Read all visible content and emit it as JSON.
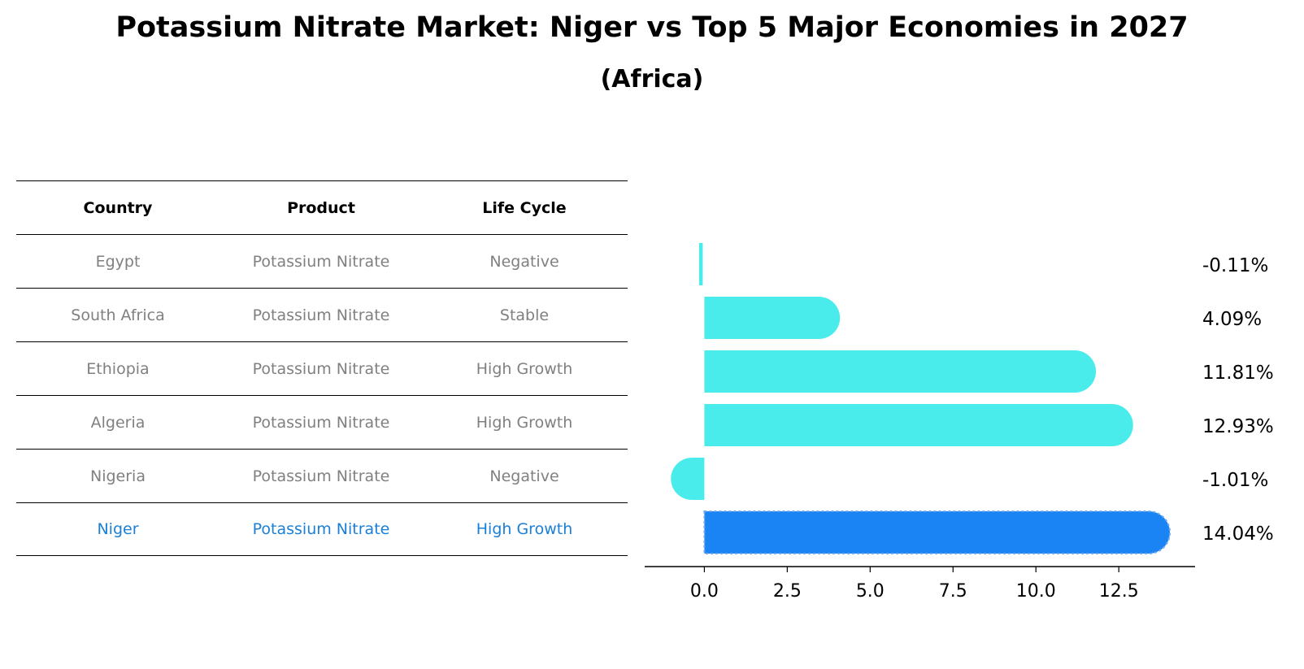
{
  "title": "Potassium Nitrate Market: Niger vs Top 5 Major Economies in 2027",
  "subtitle": "(Africa)",
  "table": {
    "headers": [
      "Country",
      "Product",
      "Life Cycle"
    ],
    "rows": [
      [
        "Egypt",
        "Potassium Nitrate",
        "Negative"
      ],
      [
        "South Africa",
        "Potassium Nitrate",
        "Stable"
      ],
      [
        "Ethiopia",
        "Potassium Nitrate",
        "High Growth"
      ],
      [
        "Algeria",
        "Potassium Nitrate",
        "High Growth"
      ],
      [
        "Nigeria",
        "Potassium Nitrate",
        "Negative"
      ],
      [
        "Niger",
        "Potassium Nitrate",
        "High Growth"
      ]
    ]
  },
  "colors": {
    "bar": "#4aeceb",
    "highlight": "#1a84f5",
    "highlight_text": "#1a7fd6",
    "muted_text": "#808080"
  },
  "chart_data": {
    "type": "bar",
    "orientation": "horizontal",
    "categories": [
      "Egypt",
      "South Africa",
      "Ethiopia",
      "Algeria",
      "Nigeria",
      "Niger"
    ],
    "values": [
      -0.11,
      4.09,
      11.81,
      12.93,
      -1.01,
      14.04
    ],
    "labels": [
      "-0.11%",
      "4.09%",
      "11.81%",
      "12.93%",
      "-1.01%",
      "14.04%"
    ],
    "highlight": "Niger",
    "xlim": [
      -1.8,
      14.8
    ],
    "xticks": [
      0.0,
      2.5,
      5.0,
      7.5,
      10.0,
      12.5
    ],
    "xtick_labels": [
      "0.0",
      "2.5",
      "5.0",
      "7.5",
      "10.0",
      "12.5"
    ],
    "xlabel": "",
    "ylabel": "",
    "grid": false
  }
}
